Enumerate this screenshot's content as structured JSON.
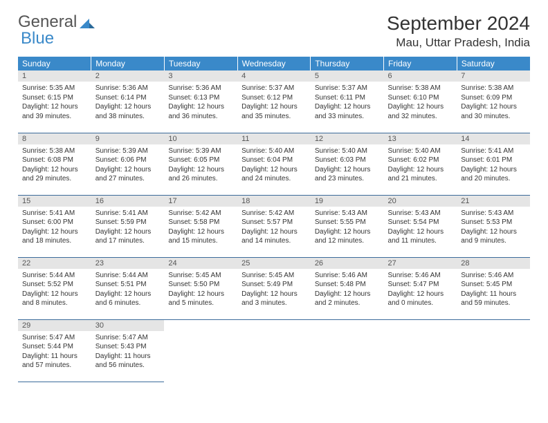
{
  "brand": {
    "word1": "General",
    "word2": "Blue"
  },
  "title": "September 2024",
  "location": "Mau, Uttar Pradesh, India",
  "colors": {
    "header_bg": "#3a89c9",
    "header_text": "#ffffff",
    "daynum_bg": "#e5e5e5",
    "row_border": "#3a6a9a",
    "brand_blue": "#3a89c9"
  },
  "weekdays": [
    "Sunday",
    "Monday",
    "Tuesday",
    "Wednesday",
    "Thursday",
    "Friday",
    "Saturday"
  ],
  "cells": [
    {
      "n": "1",
      "sr": "Sunrise: 5:35 AM",
      "ss": "Sunset: 6:15 PM",
      "d1": "Daylight: 12 hours",
      "d2": "and 39 minutes."
    },
    {
      "n": "2",
      "sr": "Sunrise: 5:36 AM",
      "ss": "Sunset: 6:14 PM",
      "d1": "Daylight: 12 hours",
      "d2": "and 38 minutes."
    },
    {
      "n": "3",
      "sr": "Sunrise: 5:36 AM",
      "ss": "Sunset: 6:13 PM",
      "d1": "Daylight: 12 hours",
      "d2": "and 36 minutes."
    },
    {
      "n": "4",
      "sr": "Sunrise: 5:37 AM",
      "ss": "Sunset: 6:12 PM",
      "d1": "Daylight: 12 hours",
      "d2": "and 35 minutes."
    },
    {
      "n": "5",
      "sr": "Sunrise: 5:37 AM",
      "ss": "Sunset: 6:11 PM",
      "d1": "Daylight: 12 hours",
      "d2": "and 33 minutes."
    },
    {
      "n": "6",
      "sr": "Sunrise: 5:38 AM",
      "ss": "Sunset: 6:10 PM",
      "d1": "Daylight: 12 hours",
      "d2": "and 32 minutes."
    },
    {
      "n": "7",
      "sr": "Sunrise: 5:38 AM",
      "ss": "Sunset: 6:09 PM",
      "d1": "Daylight: 12 hours",
      "d2": "and 30 minutes."
    },
    {
      "n": "8",
      "sr": "Sunrise: 5:38 AM",
      "ss": "Sunset: 6:08 PM",
      "d1": "Daylight: 12 hours",
      "d2": "and 29 minutes."
    },
    {
      "n": "9",
      "sr": "Sunrise: 5:39 AM",
      "ss": "Sunset: 6:06 PM",
      "d1": "Daylight: 12 hours",
      "d2": "and 27 minutes."
    },
    {
      "n": "10",
      "sr": "Sunrise: 5:39 AM",
      "ss": "Sunset: 6:05 PM",
      "d1": "Daylight: 12 hours",
      "d2": "and 26 minutes."
    },
    {
      "n": "11",
      "sr": "Sunrise: 5:40 AM",
      "ss": "Sunset: 6:04 PM",
      "d1": "Daylight: 12 hours",
      "d2": "and 24 minutes."
    },
    {
      "n": "12",
      "sr": "Sunrise: 5:40 AM",
      "ss": "Sunset: 6:03 PM",
      "d1": "Daylight: 12 hours",
      "d2": "and 23 minutes."
    },
    {
      "n": "13",
      "sr": "Sunrise: 5:40 AM",
      "ss": "Sunset: 6:02 PM",
      "d1": "Daylight: 12 hours",
      "d2": "and 21 minutes."
    },
    {
      "n": "14",
      "sr": "Sunrise: 5:41 AM",
      "ss": "Sunset: 6:01 PM",
      "d1": "Daylight: 12 hours",
      "d2": "and 20 minutes."
    },
    {
      "n": "15",
      "sr": "Sunrise: 5:41 AM",
      "ss": "Sunset: 6:00 PM",
      "d1": "Daylight: 12 hours",
      "d2": "and 18 minutes."
    },
    {
      "n": "16",
      "sr": "Sunrise: 5:41 AM",
      "ss": "Sunset: 5:59 PM",
      "d1": "Daylight: 12 hours",
      "d2": "and 17 minutes."
    },
    {
      "n": "17",
      "sr": "Sunrise: 5:42 AM",
      "ss": "Sunset: 5:58 PM",
      "d1": "Daylight: 12 hours",
      "d2": "and 15 minutes."
    },
    {
      "n": "18",
      "sr": "Sunrise: 5:42 AM",
      "ss": "Sunset: 5:57 PM",
      "d1": "Daylight: 12 hours",
      "d2": "and 14 minutes."
    },
    {
      "n": "19",
      "sr": "Sunrise: 5:43 AM",
      "ss": "Sunset: 5:55 PM",
      "d1": "Daylight: 12 hours",
      "d2": "and 12 minutes."
    },
    {
      "n": "20",
      "sr": "Sunrise: 5:43 AM",
      "ss": "Sunset: 5:54 PM",
      "d1": "Daylight: 12 hours",
      "d2": "and 11 minutes."
    },
    {
      "n": "21",
      "sr": "Sunrise: 5:43 AM",
      "ss": "Sunset: 5:53 PM",
      "d1": "Daylight: 12 hours",
      "d2": "and 9 minutes."
    },
    {
      "n": "22",
      "sr": "Sunrise: 5:44 AM",
      "ss": "Sunset: 5:52 PM",
      "d1": "Daylight: 12 hours",
      "d2": "and 8 minutes."
    },
    {
      "n": "23",
      "sr": "Sunrise: 5:44 AM",
      "ss": "Sunset: 5:51 PM",
      "d1": "Daylight: 12 hours",
      "d2": "and 6 minutes."
    },
    {
      "n": "24",
      "sr": "Sunrise: 5:45 AM",
      "ss": "Sunset: 5:50 PM",
      "d1": "Daylight: 12 hours",
      "d2": "and 5 minutes."
    },
    {
      "n": "25",
      "sr": "Sunrise: 5:45 AM",
      "ss": "Sunset: 5:49 PM",
      "d1": "Daylight: 12 hours",
      "d2": "and 3 minutes."
    },
    {
      "n": "26",
      "sr": "Sunrise: 5:46 AM",
      "ss": "Sunset: 5:48 PM",
      "d1": "Daylight: 12 hours",
      "d2": "and 2 minutes."
    },
    {
      "n": "27",
      "sr": "Sunrise: 5:46 AM",
      "ss": "Sunset: 5:47 PM",
      "d1": "Daylight: 12 hours",
      "d2": "and 0 minutes."
    },
    {
      "n": "28",
      "sr": "Sunrise: 5:46 AM",
      "ss": "Sunset: 5:45 PM",
      "d1": "Daylight: 11 hours",
      "d2": "and 59 minutes."
    },
    {
      "n": "29",
      "sr": "Sunrise: 5:47 AM",
      "ss": "Sunset: 5:44 PM",
      "d1": "Daylight: 11 hours",
      "d2": "and 57 minutes."
    },
    {
      "n": "30",
      "sr": "Sunrise: 5:47 AM",
      "ss": "Sunset: 5:43 PM",
      "d1": "Daylight: 11 hours",
      "d2": "and 56 minutes."
    }
  ]
}
